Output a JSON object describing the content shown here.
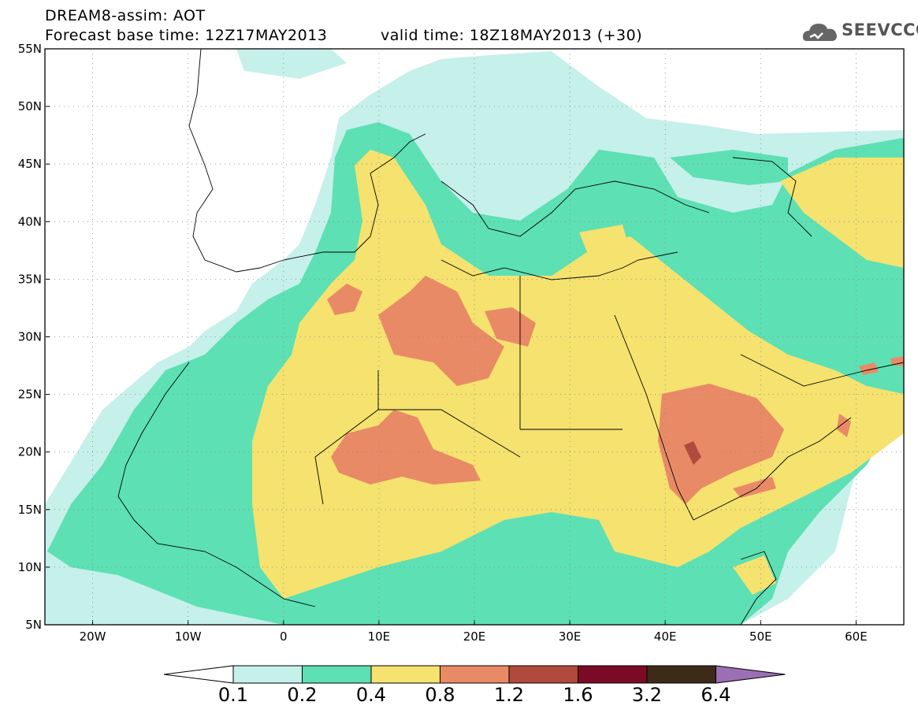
{
  "title": {
    "line1": "DREAM8-assim: AOT",
    "line2": "Forecast base time: 12Z17MAY2013",
    "line2b": "valid time: 18Z18MAY2013 (+30)"
  },
  "logo": {
    "text": "SEEVCCC",
    "icon": "cloud-icon"
  },
  "axes": {
    "lat_labels": [
      "55N",
      "50N",
      "45N",
      "40N",
      "35N",
      "30N",
      "25N",
      "20N",
      "15N",
      "10N",
      "5N"
    ],
    "lon_labels": [
      "20W",
      "10W",
      "0",
      "10E",
      "20E",
      "30E",
      "40E",
      "50E",
      "60E"
    ],
    "lat_range": [
      5,
      55
    ],
    "lon_range": [
      -25,
      65
    ]
  },
  "colorbar": {
    "labels": [
      "0.1",
      "0.2",
      "0.4",
      "0.8",
      "1.2",
      "1.6",
      "3.2",
      "6.4"
    ],
    "colors": [
      "#ffffff",
      "#c6f0ea",
      "#5de0b4",
      "#f5e26f",
      "#e98a66",
      "#b04a3c",
      "#7a0a25",
      "#3d2a18",
      "#9b6fb3"
    ]
  }
}
